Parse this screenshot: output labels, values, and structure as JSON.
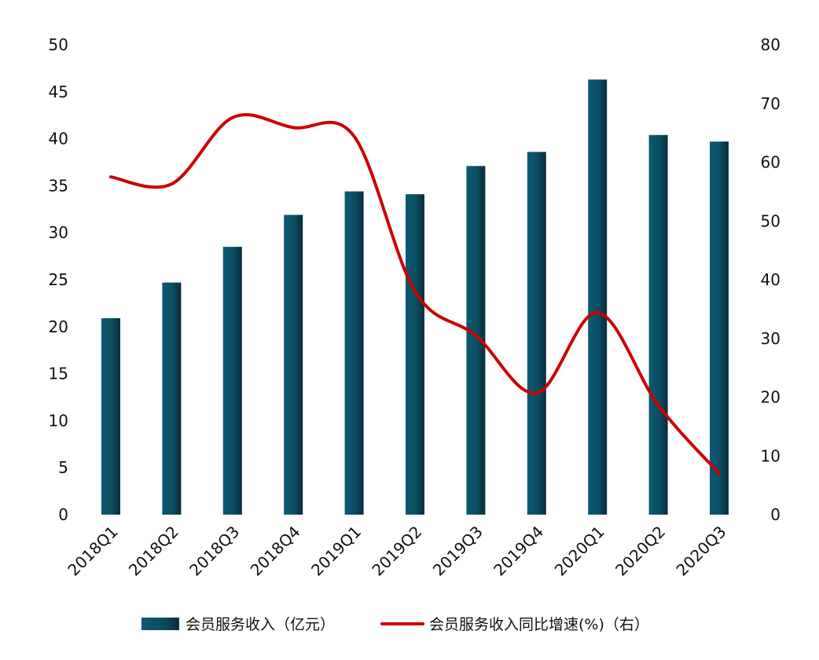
{
  "chart_data": {
    "type": "bar+line",
    "categories": [
      "2018Q1",
      "2018Q2",
      "2018Q3",
      "2018Q4",
      "2019Q1",
      "2019Q2",
      "2019Q3",
      "2019Q4",
      "2020Q1",
      "2020Q2",
      "2020Q3"
    ],
    "series": [
      {
        "name": "会员服务收入（亿元）",
        "type": "bar",
        "axis": "left",
        "color": "#0a4f66",
        "values": [
          20.9,
          24.7,
          28.5,
          31.9,
          34.4,
          34.1,
          37.1,
          38.6,
          46.3,
          40.4,
          39.7
        ]
      },
      {
        "name": "会员服务收入同比增速(%)（右）",
        "type": "line",
        "axis": "right",
        "color": "#cc0000",
        "values": [
          57.5,
          56.3,
          67.6,
          65.9,
          64.4,
          38.0,
          30.5,
          20.7,
          34.4,
          18.6,
          7.0
        ]
      }
    ],
    "y_left": {
      "min": 0,
      "max": 50,
      "ticks": [
        "0",
        "5",
        "10",
        "15",
        "20",
        "25",
        "30",
        "35",
        "40",
        "45",
        "50"
      ]
    },
    "y_right": {
      "min": 0,
      "max": 80,
      "ticks": [
        "0",
        "10",
        "20",
        "30",
        "40",
        "50",
        "60",
        "70",
        "80"
      ]
    },
    "grid": false,
    "legend_position": "bottom"
  }
}
